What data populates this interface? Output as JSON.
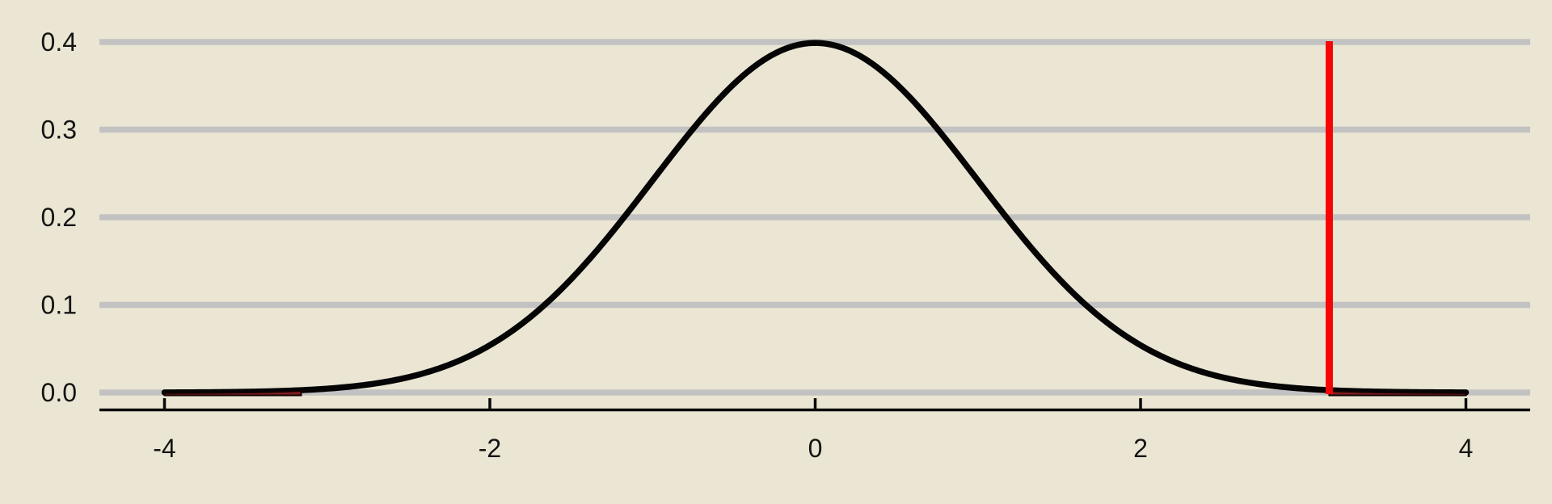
{
  "chart_data": {
    "type": "line",
    "subtype": "theoretical-null-distribution-with-p-value-shading",
    "title": "",
    "xlabel": "",
    "ylabel": "",
    "legend": "none",
    "grid": "horizontal-only",
    "xlim": [
      -4.4,
      4.4
    ],
    "ylim": [
      -0.02,
      0.42
    ],
    "x_ticks": [
      {
        "value": -4,
        "label": "-4"
      },
      {
        "value": -2,
        "label": "-2"
      },
      {
        "value": 0,
        "label": "0"
      },
      {
        "value": 2,
        "label": "2"
      },
      {
        "value": 4,
        "label": "4"
      }
    ],
    "y_ticks": [
      {
        "value": 0.0,
        "label": "0.0"
      },
      {
        "value": 0.1,
        "label": "0.1"
      },
      {
        "value": 0.2,
        "label": "0.2"
      },
      {
        "value": 0.3,
        "label": "0.3"
      },
      {
        "value": 0.4,
        "label": "0.4"
      }
    ],
    "series": [
      {
        "name": "standard-normal-density",
        "distribution": "normal",
        "mean": 0,
        "sd": 1,
        "x_range": [
          -4,
          4
        ],
        "peak_density": 0.3989,
        "sample_points": {
          "x": [
            -4,
            -3.5,
            -3,
            -2.5,
            -2,
            -1.5,
            -1,
            -0.5,
            0,
            0.5,
            1,
            1.5,
            2,
            2.5,
            3,
            3.5,
            4
          ],
          "y": [
            0.00013,
            0.00087,
            0.00443,
            0.01753,
            0.05399,
            0.12952,
            0.24197,
            0.35207,
            0.39894,
            0.35207,
            0.24197,
            0.12952,
            0.05399,
            0.01753,
            0.00443,
            0.00087,
            0.00013
          ]
        }
      }
    ],
    "p_value_annotation": {
      "observed_stat": 3.16,
      "direction": "two-sided",
      "line_span_density": [
        0,
        0.4
      ],
      "shaded_regions": [
        [
          -4,
          -3.16
        ],
        [
          3.16,
          4
        ]
      ]
    },
    "colors": {
      "background": "#EAE6D3",
      "gridline": "#C2C2C2",
      "curve": "#050505",
      "observed_line": "#F60505",
      "tail_fill": "#7E1F1F",
      "tail_edge": "#140303",
      "axis_line": "#0A0A0A",
      "tick_label": "#141414"
    }
  }
}
